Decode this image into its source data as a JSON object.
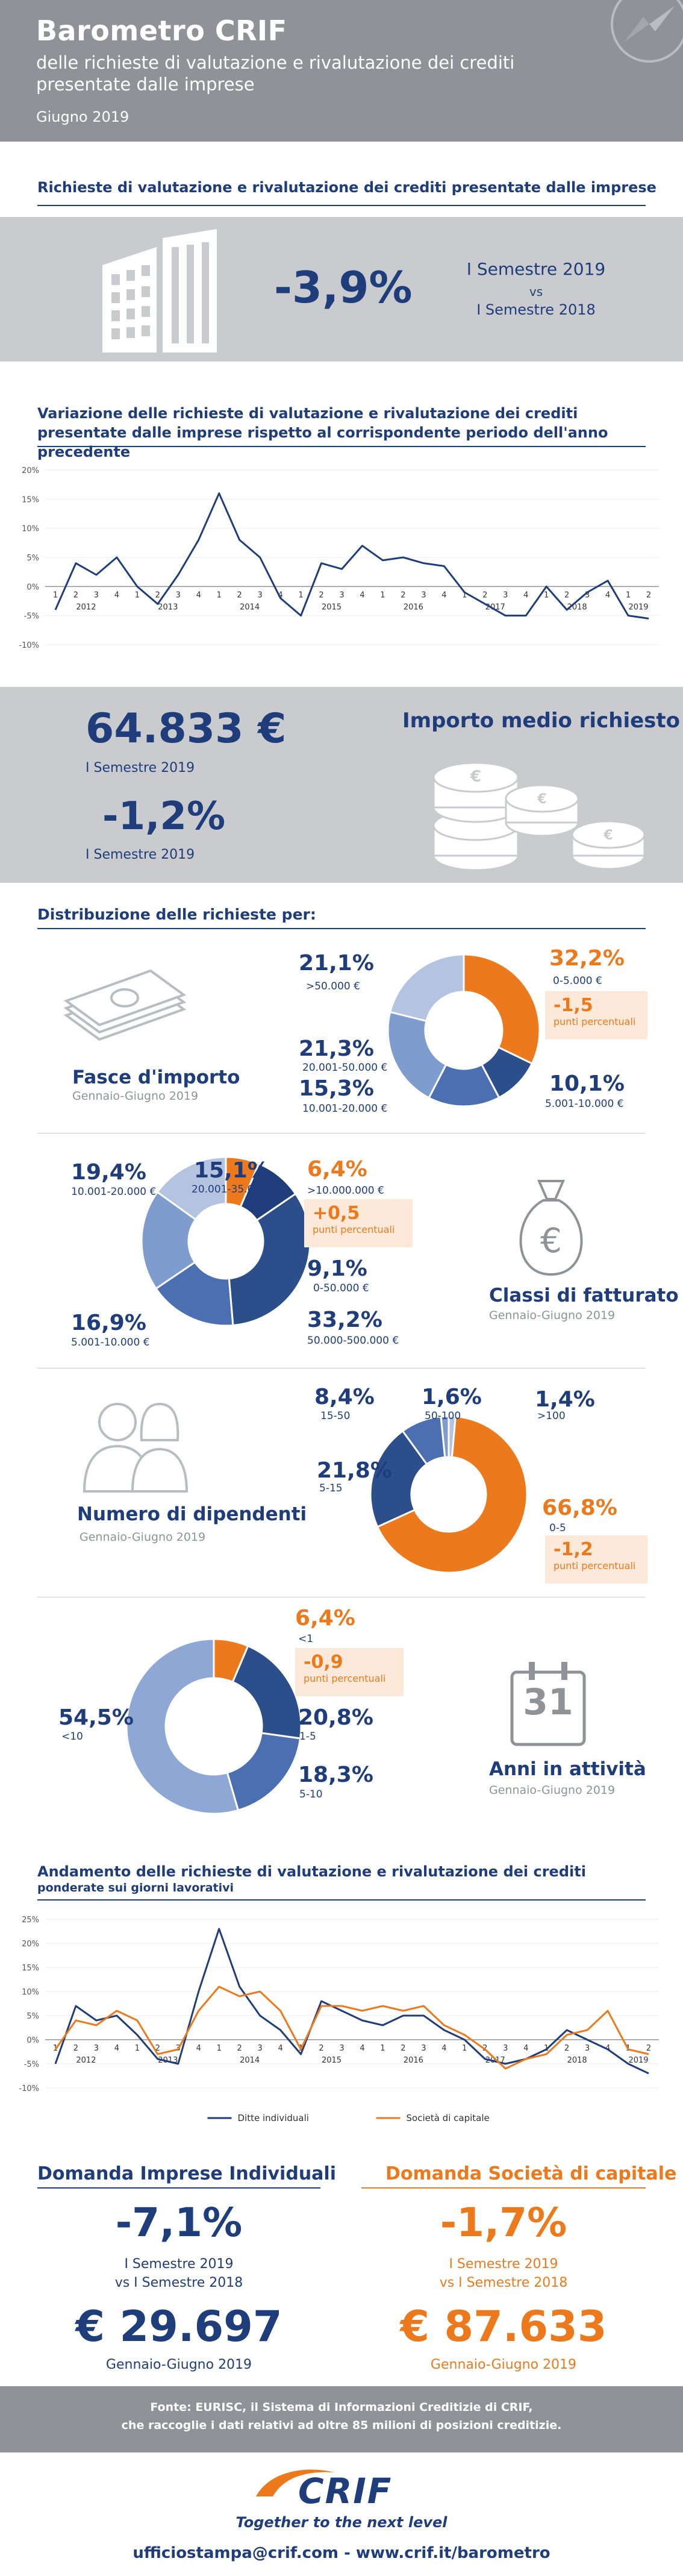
{
  "header": {
    "title": "Barometro CRIF",
    "subtitle_line1": "delle richieste di valutazione e rivalutazione dei crediti",
    "subtitle_line2": "presentate dalle imprese",
    "date": "Giugno 2019"
  },
  "section1": {
    "title": "Richieste di valutazione e rivalutazione dei crediti presentate dalle imprese",
    "value": "-3,9%",
    "period_line1": "I Semestre 2019",
    "period_vs": "vs",
    "period_line2": "I Semestre 2018"
  },
  "section2": {
    "title_line1": "Variazione delle richieste di valutazione e rivalutazione dei crediti",
    "title_line2": "presentate dalle imprese rispetto al corrispondente periodo dell'anno precedente"
  },
  "section3": {
    "amount": "64.833 €",
    "amount_period": "I Semestre 2019",
    "label": "Importo medio richiesto",
    "change": "-1,2%",
    "change_period": "I Semestre 2019"
  },
  "distribution": {
    "title": "Distribuzione delle richieste per:",
    "unit_pp": "punti percentuali",
    "fasce": {
      "title": "Fasce d'importo",
      "sub": "Gennaio-Giugno 2019",
      "highlight_delta": "-1,5",
      "slices": [
        {
          "pct": "32,2%",
          "label": "0-5.000 €",
          "value": 32.2,
          "color": "#ec7a1c"
        },
        {
          "pct": "10,1%",
          "label": "5.001-10.000 €",
          "value": 10.1,
          "color": "#2c4f8c"
        },
        {
          "pct": "15,3%",
          "label": "10.001-20.000 €",
          "value": 15.3,
          "color": "#4b6fb0"
        },
        {
          "pct": "21,3%",
          "label": "20.001-50.000 €",
          "value": 21.3,
          "color": "#7f9ccf"
        },
        {
          "pct": "21,1%",
          "label": ">50.000 €",
          "value": 21.1,
          "color": "#b3c3e0"
        }
      ]
    },
    "fatturato": {
      "title": "Classi di fatturato",
      "sub": "Gennaio-Giugno 2019",
      "highlight_delta": "+0,5",
      "slices": [
        {
          "pct": "6,4%",
          "label": ">10.000.000 €",
          "value": 6.4,
          "color": "#ec7a1c"
        },
        {
          "pct": "9,1%",
          "label": "0-50.000 €",
          "value": 9.1,
          "color": "#1f3d7a"
        },
        {
          "pct": "33,2%",
          "label": "50.000-500.000 €",
          "value": 33.2,
          "color": "#2c4f8c"
        },
        {
          "pct": "16,9%",
          "label": "5.001-10.000 €",
          "value": 16.9,
          "color": "#4b6fb0"
        },
        {
          "pct": "19,4%",
          "label": "10.001-20.000 €",
          "value": 19.4,
          "color": "#7f9ccf"
        },
        {
          "pct": "15,1%",
          "label": "20.001-35.000 €",
          "value": 15.1,
          "color": "#b3c3e0"
        }
      ]
    },
    "dipendenti": {
      "title": "Numero di dipendenti",
      "sub": "Gennaio-Giugno 2019",
      "highlight_delta": "-1,2",
      "slices": [
        {
          "pct": "1,4%",
          "label": ">100",
          "value": 1.4,
          "color": "#b3c3e0"
        },
        {
          "pct": "66,8%",
          "label": "0-5",
          "value": 66.8,
          "color": "#ec7a1c"
        },
        {
          "pct": "21,8%",
          "label": "5-15",
          "value": 21.8,
          "color": "#2c4f8c"
        },
        {
          "pct": "8,4%",
          "label": "15-50",
          "value": 8.4,
          "color": "#4b6fb0"
        },
        {
          "pct": "1,6%",
          "label": "50-100",
          "value": 1.6,
          "color": "#7f9ccf"
        }
      ]
    },
    "anni": {
      "title": "Anni in attività",
      "sub": "Gennaio-Giugno 2019",
      "highlight_delta": "-0,9",
      "calendar_number": "31",
      "slices": [
        {
          "pct": "6,4%",
          "label": "<1",
          "value": 6.4,
          "color": "#ec7a1c"
        },
        {
          "pct": "20,8%",
          "label": "1-5",
          "value": 20.8,
          "color": "#2c4f8c"
        },
        {
          "pct": "18,3%",
          "label": "5-10",
          "value": 18.3,
          "color": "#4b6fb0"
        },
        {
          "pct": "54,5%",
          "label": "<10",
          "value": 54.5,
          "color": "#8fa7d4"
        }
      ]
    }
  },
  "trend": {
    "title": "Andamento delle richieste di valutazione e rivalutazione dei crediti",
    "subtitle": "ponderate sui giorni lavorativi"
  },
  "domanda": {
    "left_title": "Domanda Imprese Individuali",
    "left_value": "-7,1%",
    "left_period_1": "I Semestre 2019",
    "left_period_2": "vs I Semestre 2018",
    "left_amount": "€ 29.697",
    "left_amount_period": "Gennaio-Giugno 2019",
    "right_title": "Domanda Società di capitale",
    "right_value": "-1,7%",
    "right_period_1": "I Semestre 2019",
    "right_period_2": "vs I Semestre 2018",
    "right_amount": "€ 87.633",
    "right_amount_period": "Gennaio-Giugno 2019"
  },
  "footer": {
    "source_line1": "Fonte: EURISC, il Sistema di Informazioni Creditizie di CRIF,",
    "source_line2": "che raccoglie i dati relativi ad oltre 85 milioni di posizioni creditizie.",
    "logo": "CRIF",
    "tagline": "Together to the next level",
    "contact": "ufficiostampa@crif.com - www.crif.it/barometro"
  },
  "colors": {
    "navy": "#1f3d7a",
    "orange": "#ec7a1c",
    "gray_band": "#8f9296",
    "light_orange": "#fde9d9"
  },
  "chart_data": [
    {
      "type": "line",
      "ylim": [
        -10,
        20
      ],
      "yticks": [
        "20%",
        "15%",
        "10%",
        "5%",
        "0%",
        "-5%",
        "-10%"
      ],
      "quarter_labels": [
        "1",
        "2",
        "3",
        "4",
        "1",
        "2",
        "3",
        "4",
        "1",
        "2",
        "3",
        "4",
        "1",
        "2",
        "3",
        "4",
        "1",
        "2",
        "3",
        "4",
        "1",
        "2",
        "3",
        "4",
        "1",
        "2",
        "3",
        "4",
        "1",
        "2"
      ],
      "year_labels": [
        "2012",
        "2013",
        "2014",
        "2015",
        "2016",
        "2017",
        "2018",
        "2019"
      ],
      "series": [
        {
          "values": [
            -4,
            4,
            2,
            5,
            0,
            -3,
            2,
            8,
            16,
            8,
            5,
            -2,
            -5,
            4,
            3,
            7,
            4.5,
            5,
            4,
            3.5,
            -1,
            -3,
            -5,
            -5,
            0,
            -4,
            -1,
            1,
            -5,
            -5.5
          ],
          "color": "#1f3d7a"
        }
      ]
    },
    {
      "type": "line",
      "ylim": [
        -10,
        25
      ],
      "yticks": [
        "25%",
        "20%",
        "15%",
        "10%",
        "5%",
        "0%",
        "-5%",
        "-10%"
      ],
      "quarter_labels": [
        "1",
        "2",
        "3",
        "4",
        "1",
        "2",
        "3",
        "4",
        "1",
        "2",
        "3",
        "4",
        "1",
        "2",
        "3",
        "4",
        "1",
        "2",
        "3",
        "4",
        "1",
        "2",
        "3",
        "4",
        "1",
        "2",
        "3",
        "4",
        "1",
        "2"
      ],
      "year_labels": [
        "2012",
        "2013",
        "2014",
        "2015",
        "2016",
        "2017",
        "2018",
        "2019"
      ],
      "series": [
        {
          "name": "Ditte individuali",
          "values": [
            -5,
            7,
            4,
            5,
            1,
            -4,
            -5,
            10,
            23,
            11,
            5,
            2,
            -3,
            8,
            6,
            4,
            3,
            5,
            5,
            2,
            0,
            -4,
            -5,
            -4,
            -2,
            2,
            0,
            -2,
            -5,
            -7
          ],
          "color": "#1f3d7a"
        },
        {
          "name": "Società di capitale",
          "values": [
            -2,
            4,
            3,
            6,
            4,
            -3,
            -2,
            6,
            11,
            9,
            10,
            6,
            -2,
            7,
            7,
            6,
            7,
            6,
            7,
            3,
            1,
            -2,
            -6,
            -4,
            -3,
            1,
            2,
            6,
            -2,
            -3
          ],
          "color": "#ec7a1c"
        }
      ]
    }
  ]
}
